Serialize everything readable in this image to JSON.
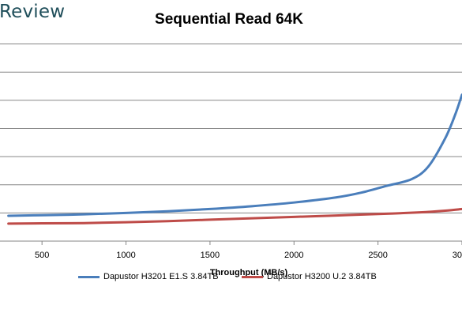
{
  "brand": {
    "text": "Review"
  },
  "chart_data": {
    "type": "line",
    "title": "Sequential Read 64K",
    "xlabel": "Throughput (MB/s)",
    "ylabel": "",
    "xlim": [
      250,
      3000
    ],
    "x_ticks": [
      500,
      1000,
      1500,
      2000,
      2500,
      3000
    ],
    "x_tick_labels": [
      "500",
      "1000",
      "1500",
      "2000",
      "2500",
      "3000"
    ],
    "ylim": [
      0,
      8
    ],
    "y_gridlines": [
      0,
      1,
      2,
      3,
      4,
      5,
      6,
      7
    ],
    "grid": true,
    "legend_position": "bottom",
    "series": [
      {
        "name": "Dapustor H3201 E1.S 3.84TB",
        "color": "#4a7ebb",
        "points": [
          [
            300,
            0.9
          ],
          [
            500,
            0.92
          ],
          [
            750,
            0.95
          ],
          [
            1000,
            1.0
          ],
          [
            1250,
            1.06
          ],
          [
            1500,
            1.14
          ],
          [
            1750,
            1.24
          ],
          [
            2000,
            1.37
          ],
          [
            2250,
            1.55
          ],
          [
            2400,
            1.72
          ],
          [
            2550,
            1.96
          ],
          [
            2700,
            2.2
          ],
          [
            2800,
            2.65
          ],
          [
            2900,
            3.65
          ],
          [
            2960,
            4.5
          ],
          [
            3000,
            5.2
          ]
        ]
      },
      {
        "name": "Dapustor H3200 U.2 3.84TB",
        "color": "#be4b48",
        "points": [
          [
            300,
            0.62
          ],
          [
            500,
            0.63
          ],
          [
            750,
            0.64
          ],
          [
            1000,
            0.67
          ],
          [
            1250,
            0.71
          ],
          [
            1500,
            0.76
          ],
          [
            1750,
            0.81
          ],
          [
            2000,
            0.86
          ],
          [
            2250,
            0.91
          ],
          [
            2500,
            0.96
          ],
          [
            2750,
            1.02
          ],
          [
            2900,
            1.08
          ],
          [
            3000,
            1.14
          ]
        ]
      }
    ]
  }
}
